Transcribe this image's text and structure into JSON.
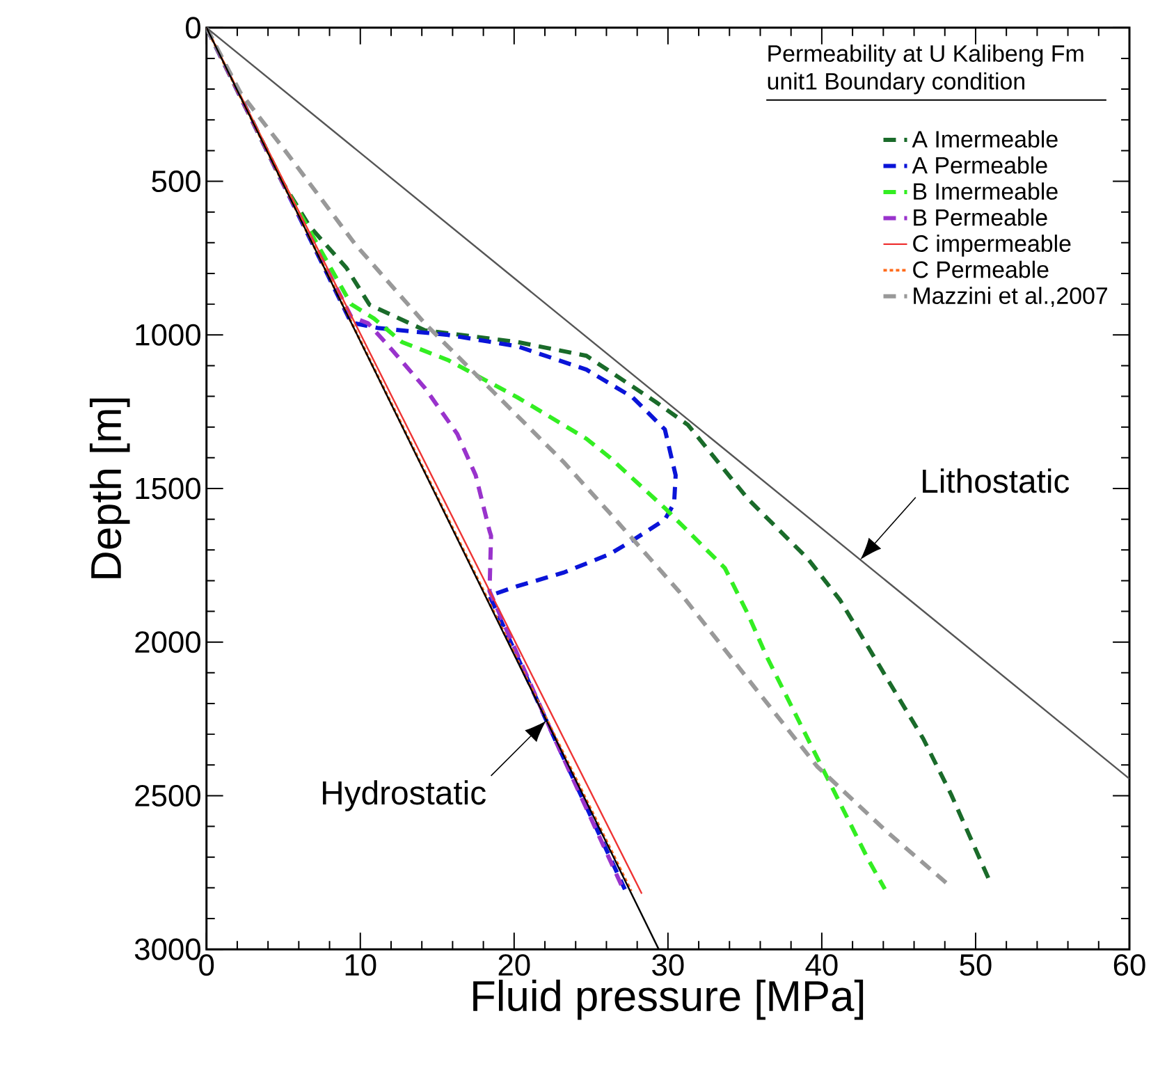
{
  "chart_data": {
    "type": "line",
    "xlabel": "Fluid pressure [MPa]",
    "ylabel": "Depth [m]",
    "legend_title": "Permeability at U Kalibeng Fm unit1 Boundary condition",
    "xlim": [
      0,
      60
    ],
    "ylim": [
      3000,
      0
    ],
    "xticks": [
      0,
      10,
      20,
      30,
      40,
      50,
      60
    ],
    "yticks": [
      0,
      500,
      1000,
      1500,
      2000,
      2500,
      3000
    ],
    "legend": "top right",
    "grid": false,
    "series": [
      {
        "name": "A Imermeable",
        "color": "#1a6b2a",
        "line_style": "dashed",
        "x": [
          0,
          4.9,
          6.7,
          9.1,
          10.6,
          14.2,
          20.2,
          24.7,
          29.2,
          31.3,
          35.2,
          39.1,
          41.2,
          43.0,
          44.8,
          46.6,
          48.4,
          50.8,
          51.0
        ],
        "values": [
          0,
          500,
          646,
          782,
          902,
          985,
          1023,
          1068,
          1218,
          1293,
          1534,
          1729,
          1864,
          2015,
          2165,
          2315,
          2495,
          2765,
          2790
        ]
      },
      {
        "name": "A Permeable",
        "color": "#0a14d8",
        "line_style": "dashed",
        "x": [
          0,
          4.9,
          9.4,
          11.2,
          15.7,
          20.2,
          24.7,
          27.7,
          29.8,
          30.5,
          30.4,
          29.8,
          27.7,
          26.2,
          23.2,
          20.2,
          18.4,
          22.5,
          27.2
        ],
        "values": [
          0,
          500,
          960,
          978,
          1000,
          1037,
          1113,
          1203,
          1308,
          1457,
          1548,
          1601,
          1669,
          1714,
          1774,
          1818,
          1849,
          2300,
          2805
        ]
      },
      {
        "name": "B Imermeable",
        "color": "#33ee22",
        "line_style": "dashed",
        "x": [
          0,
          4.9,
          9.4,
          10.9,
          12.7,
          15.7,
          20.2,
          24.7,
          26.2,
          29.8,
          33.7,
          35.2,
          36.4,
          38.2,
          39.4,
          41.2,
          43.0,
          44.1
        ],
        "values": [
          0,
          500,
          900,
          947,
          1023,
          1082,
          1203,
          1338,
          1398,
          1564,
          1759,
          1909,
          2045,
          2226,
          2346,
          2526,
          2706,
          2804
        ]
      },
      {
        "name": "B Permeable",
        "color": "#9933cc",
        "line_style": "dashed",
        "x": [
          0,
          4.9,
          9.4,
          10.5,
          12.1,
          14.2,
          16.3,
          17.5,
          18.4,
          18.5,
          18.4,
          22.5,
          27.1
        ],
        "values": [
          0,
          500,
          940,
          962,
          1051,
          1173,
          1322,
          1457,
          1638,
          1654,
          1834,
          2300,
          2805
        ]
      },
      {
        "name": "C impermeable",
        "color": "#ee3333",
        "line_style": "solid",
        "x": [
          0,
          28.3
        ],
        "values": [
          0,
          2819
        ]
      },
      {
        "name": "C Permeable",
        "color": "#ff6a1a",
        "line_style": "dotted",
        "x": [
          0,
          27.6
        ],
        "values": [
          0,
          2810
        ]
      },
      {
        "name": "Mazzini et al.,2007",
        "color": "#999999",
        "line_style": "dashed",
        "x": [
          0,
          2.2,
          5.2,
          9.7,
          14.2,
          18.7,
          23.2,
          26.2,
          30.7,
          35.2,
          39.7,
          44.2,
          48.4
        ],
        "values": [
          0,
          211,
          406,
          707,
          963,
          1188,
          1413,
          1579,
          1834,
          2120,
          2405,
          2616,
          2797
        ]
      },
      {
        "color": "#555555",
        "line_style": "solid",
        "x": [
          0,
          60
        ],
        "values": [
          0,
          2445
        ]
      },
      {
        "color": "#000000",
        "line_style": "solid",
        "x": [
          0,
          29.4
        ],
        "values": [
          0,
          3000
        ]
      }
    ],
    "annotations": [
      {
        "text": "Lithostatic",
        "x": 42.5,
        "y": 1732
      },
      {
        "text": "Hydrostatic",
        "x": 22.1,
        "y": 2255
      }
    ]
  }
}
